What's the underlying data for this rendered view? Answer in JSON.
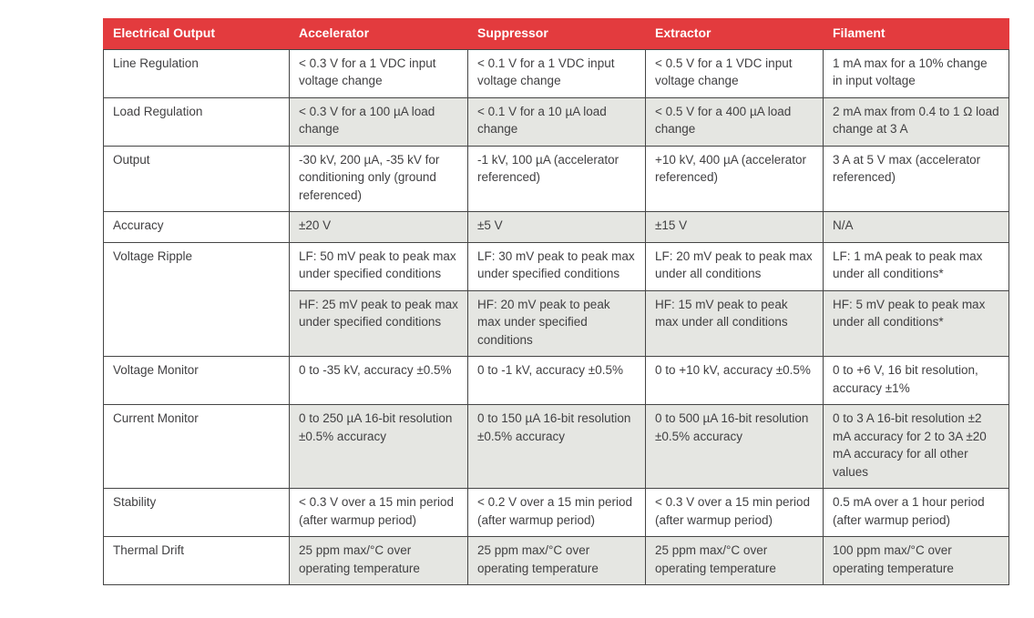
{
  "colors": {
    "header_bg": "#e33b3e",
    "header_text": "#ffffff",
    "row_shade": "#e5e6e2",
    "border": "#454545",
    "body_text": "#414042"
  },
  "table": {
    "headers": [
      "Electrical Output",
      "Accelerator",
      "Suppressor",
      "Extractor",
      "Filament"
    ],
    "rows": [
      {
        "label": "Line Regulation",
        "cells": [
          "< 0.3 V for a 1 VDC input voltage change",
          "< 0.1 V for a 1 VDC input voltage change",
          "< 0.5 V for a 1 VDC input voltage change",
          "1 mA max for a 10% change in input voltage"
        ]
      },
      {
        "label": "Load Regulation",
        "cells": [
          "< 0.3 V for a 100 µA load change",
          "< 0.1 V for a 10 µA load change",
          "< 0.5 V for a 400 µA load change",
          "2 mA max from 0.4 to 1 Ω load change at 3 A"
        ]
      },
      {
        "label": "Output",
        "cells": [
          "-30 kV, 200 µA, -35 kV for conditioning only (ground referenced)",
          "-1 kV, 100 µA (accelerator referenced)",
          "+10 kV, 400 µA (accelerator referenced)",
          "3 A at 5 V max (accelerator referenced)"
        ]
      },
      {
        "label": "Accuracy",
        "cells": [
          "±20 V",
          "±5 V",
          "±15 V",
          "N/A"
        ]
      },
      {
        "label": "Voltage Ripple",
        "cells": [
          "LF: 50 mV peak to peak max under specified conditions",
          "LF: 30 mV peak to peak max under specified conditions",
          "LF: 20 mV peak to peak max under all conditions",
          "LF: 1 mA peak to peak max under all conditions*"
        ]
      },
      {
        "label": "",
        "cells": [
          "HF: 25 mV peak to peak max under specified conditions",
          "HF: 20 mV peak to peak max under specified conditions",
          "HF: 15 mV peak to peak max under all conditions",
          "HF: 5 mV peak to peak max under all conditions*"
        ]
      },
      {
        "label": "Voltage Monitor",
        "cells": [
          "0 to -35 kV, accuracy ±0.5%",
          "0 to -1 kV, accuracy ±0.5%",
          "0 to +10 kV, accuracy ±0.5%",
          "0 to +6 V, 16 bit resolution, accuracy ±1%"
        ]
      },
      {
        "label": "Current Monitor",
        "cells": [
          "0 to 250 µA 16-bit resolution ±0.5% accuracy",
          "0 to 150 µA 16-bit resolution ±0.5% accuracy",
          "0 to 500 µA 16-bit resolution ±0.5% accuracy",
          "0 to 3 A 16-bit resolution ±2 mA accuracy for 2 to 3A ±20 mA accuracy for all other values"
        ]
      },
      {
        "label": "Stability",
        "cells": [
          "< 0.3 V over a 15 min period (after warmup period)",
          "< 0.2 V over a 15 min period (after warmup period)",
          "< 0.3 V over a 15 min period (after warmup period)",
          "0.5 mA over a 1 hour period (after warmup period)"
        ]
      },
      {
        "label": "Thermal Drift",
        "cells": [
          "25 ppm max/°C over operating temperature",
          "25 ppm max/°C over operating temperature",
          "25 ppm max/°C over operating temperature",
          "100 ppm max/°C over operating temperature"
        ]
      }
    ]
  }
}
